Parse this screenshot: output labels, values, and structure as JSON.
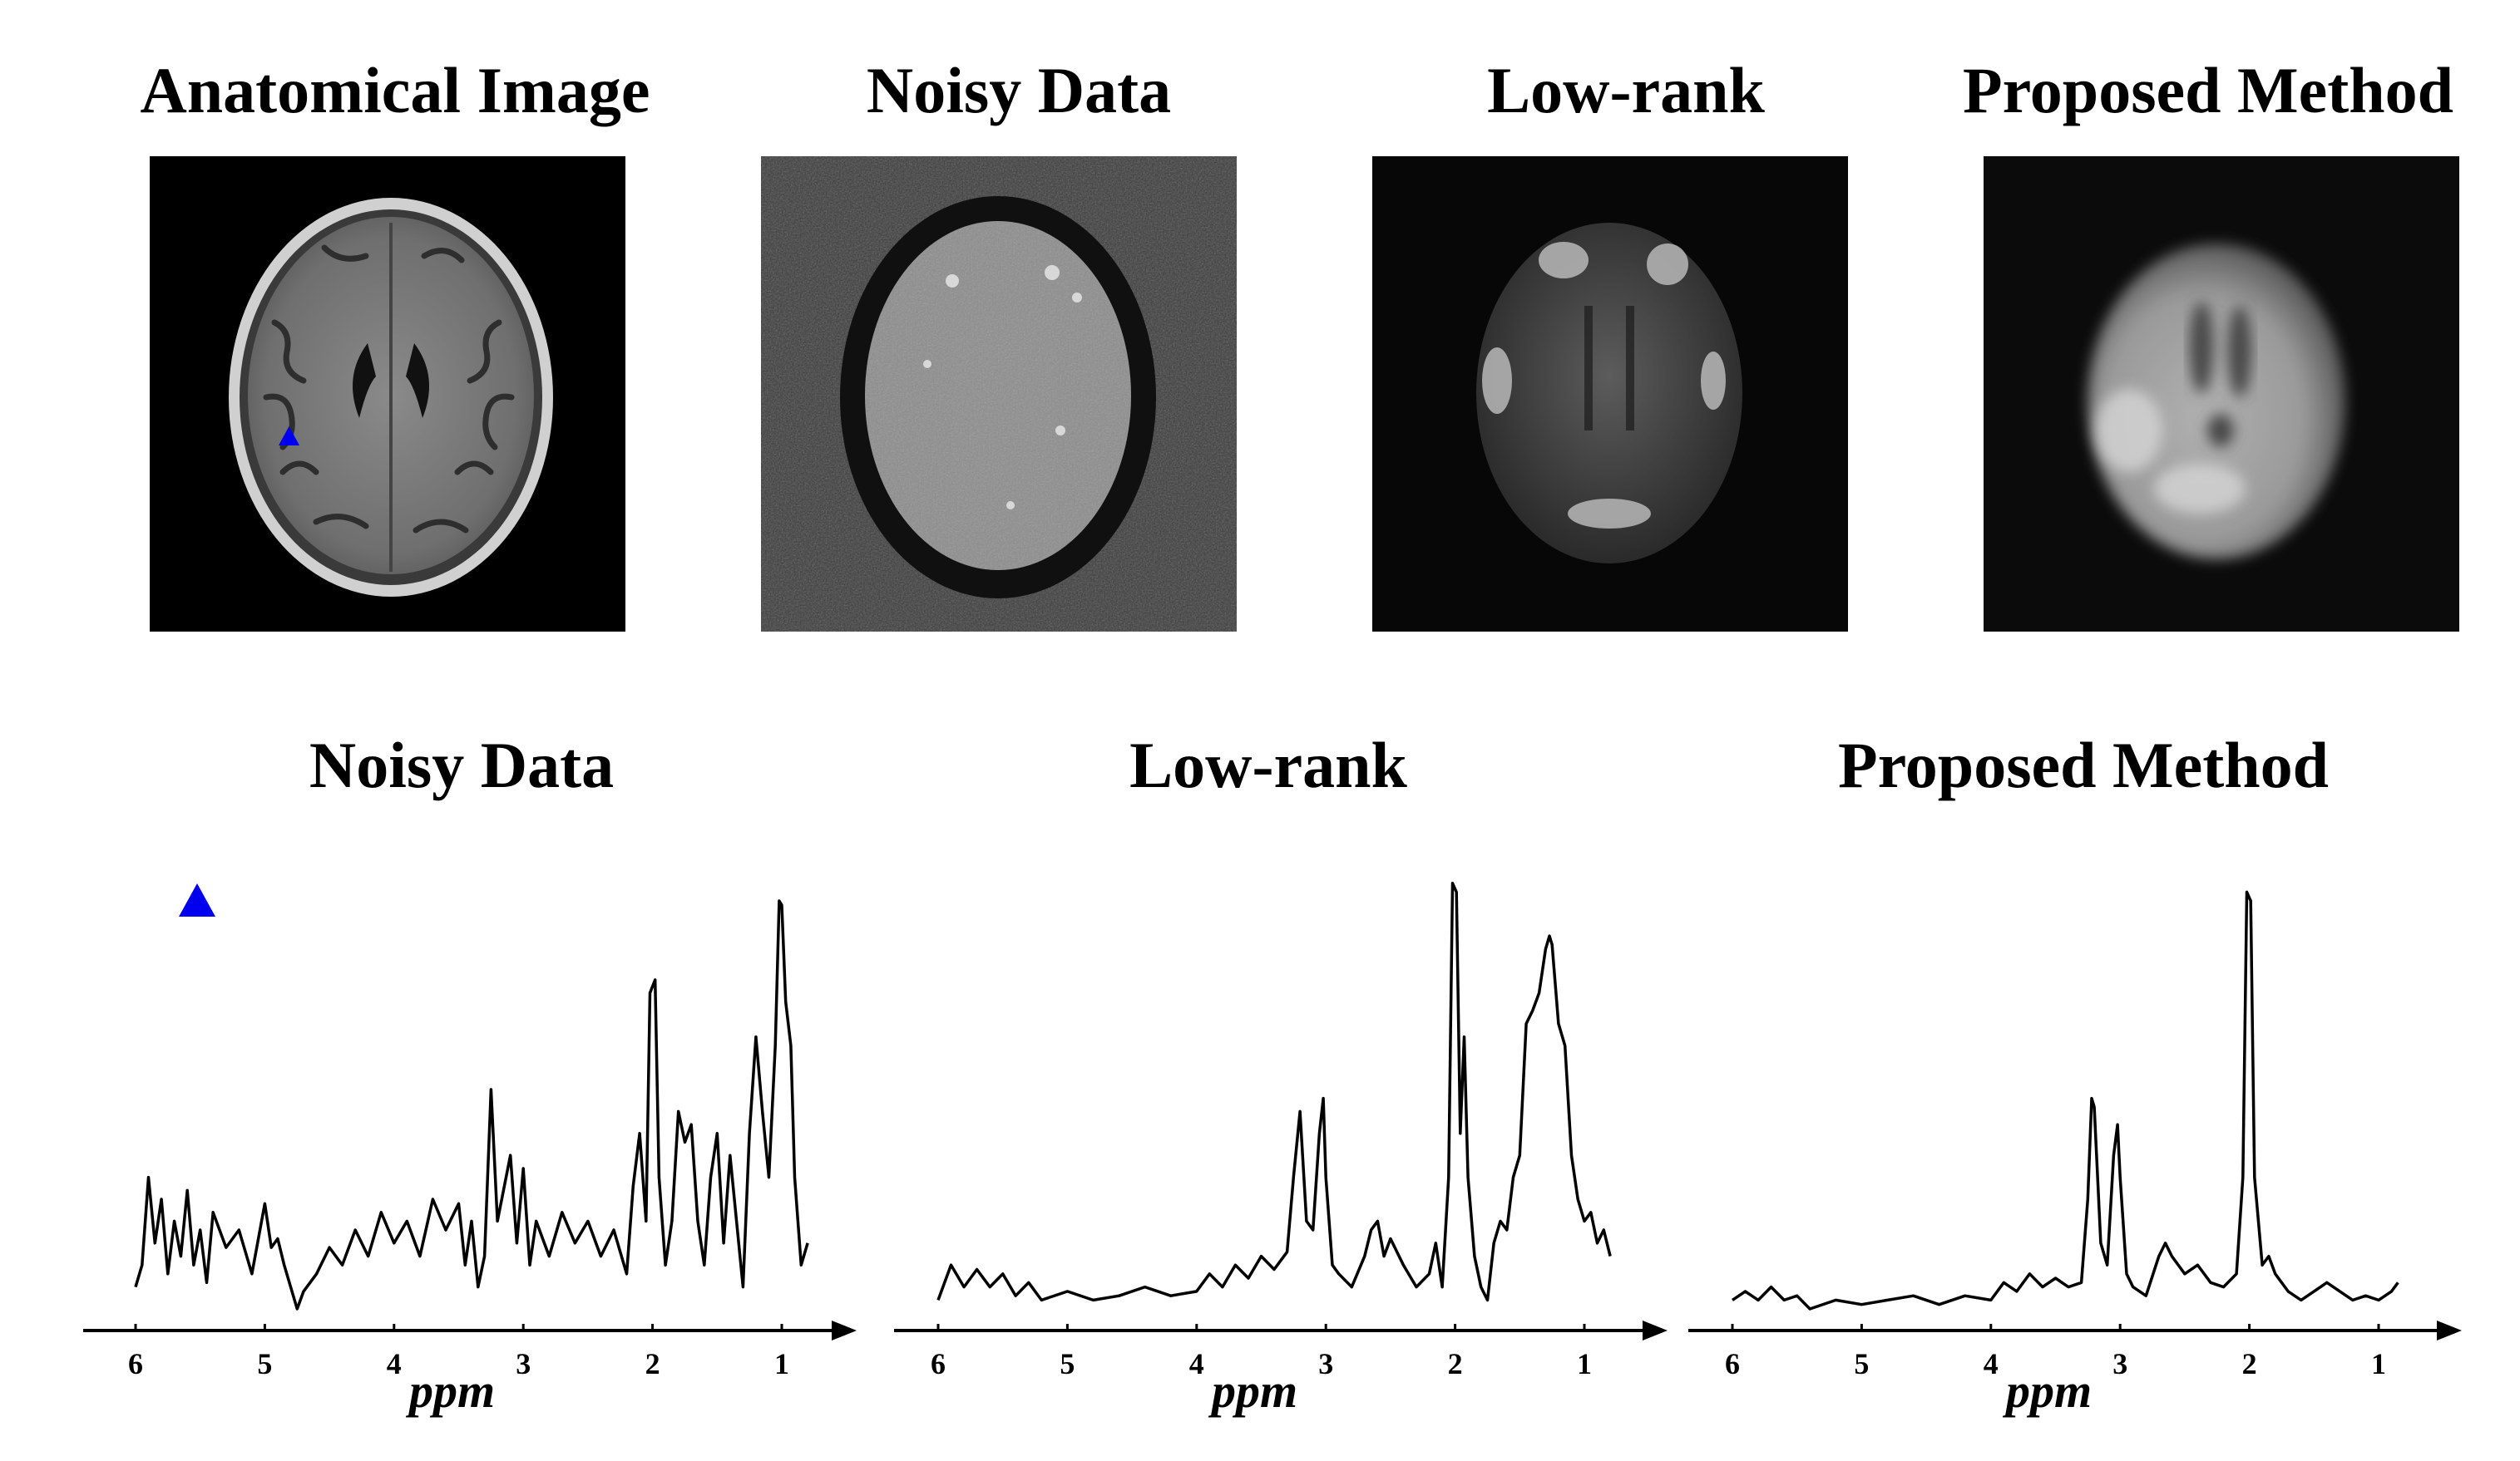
{
  "top_titles": [
    "Anatomical Image",
    "Noisy Data",
    "Low-rank",
    "Proposed Method"
  ],
  "bottom_titles": [
    "Noisy Data",
    "Low-rank",
    "Proposed Method"
  ],
  "marker_color": "#0000ee",
  "chart_data": [
    {
      "type": "line",
      "title": "Noisy Data",
      "xlabel": "ppm",
      "x_ticks": [
        6,
        5,
        4,
        3,
        2,
        1
      ],
      "xlim": [
        6.05,
        0.7
      ],
      "ylim": [
        0,
        1
      ],
      "series": [
        {
          "points": [
            [
              6.0,
              0.05
            ],
            [
              5.95,
              0.1
            ],
            [
              5.9,
              0.3
            ],
            [
              5.85,
              0.15
            ],
            [
              5.8,
              0.25
            ],
            [
              5.75,
              0.08
            ],
            [
              5.7,
              0.2
            ],
            [
              5.65,
              0.12
            ],
            [
              5.6,
              0.27
            ],
            [
              5.55,
              0.1
            ],
            [
              5.5,
              0.18
            ],
            [
              5.45,
              0.06
            ],
            [
              5.4,
              0.22
            ],
            [
              5.3,
              0.14
            ],
            [
              5.2,
              0.18
            ],
            [
              5.1,
              0.08
            ],
            [
              5.0,
              0.24
            ],
            [
              4.95,
              0.14
            ],
            [
              4.9,
              0.16
            ],
            [
              4.85,
              0.1
            ],
            [
              4.8,
              0.05
            ],
            [
              4.75,
              0.0
            ],
            [
              4.7,
              0.04
            ],
            [
              4.6,
              0.08
            ],
            [
              4.5,
              0.14
            ],
            [
              4.4,
              0.1
            ],
            [
              4.3,
              0.18
            ],
            [
              4.2,
              0.12
            ],
            [
              4.1,
              0.22
            ],
            [
              4.0,
              0.15
            ],
            [
              3.9,
              0.2
            ],
            [
              3.8,
              0.12
            ],
            [
              3.7,
              0.25
            ],
            [
              3.6,
              0.18
            ],
            [
              3.5,
              0.24
            ],
            [
              3.45,
              0.1
            ],
            [
              3.4,
              0.2
            ],
            [
              3.35,
              0.05
            ],
            [
              3.3,
              0.12
            ],
            [
              3.25,
              0.5
            ],
            [
              3.2,
              0.2
            ],
            [
              3.1,
              0.35
            ],
            [
              3.05,
              0.15
            ],
            [
              3.0,
              0.32
            ],
            [
              2.95,
              0.1
            ],
            [
              2.9,
              0.2
            ],
            [
              2.8,
              0.12
            ],
            [
              2.7,
              0.22
            ],
            [
              2.6,
              0.15
            ],
            [
              2.5,
              0.2
            ],
            [
              2.4,
              0.12
            ],
            [
              2.3,
              0.18
            ],
            [
              2.2,
              0.08
            ],
            [
              2.15,
              0.28
            ],
            [
              2.1,
              0.4
            ],
            [
              2.05,
              0.2
            ],
            [
              2.02,
              0.72
            ],
            [
              1.98,
              0.75
            ],
            [
              1.95,
              0.3
            ],
            [
              1.9,
              0.1
            ],
            [
              1.85,
              0.2
            ],
            [
              1.8,
              0.45
            ],
            [
              1.75,
              0.38
            ],
            [
              1.7,
              0.42
            ],
            [
              1.65,
              0.2
            ],
            [
              1.6,
              0.1
            ],
            [
              1.55,
              0.3
            ],
            [
              1.5,
              0.4
            ],
            [
              1.45,
              0.15
            ],
            [
              1.4,
              0.35
            ],
            [
              1.35,
              0.2
            ],
            [
              1.3,
              0.05
            ],
            [
              1.25,
              0.4
            ],
            [
              1.2,
              0.62
            ],
            [
              1.15,
              0.45
            ],
            [
              1.1,
              0.3
            ],
            [
              1.05,
              0.6
            ],
            [
              1.02,
              0.93
            ],
            [
              1.0,
              0.92
            ],
            [
              0.97,
              0.7
            ],
            [
              0.93,
              0.6
            ],
            [
              0.9,
              0.3
            ],
            [
              0.85,
              0.1
            ],
            [
              0.8,
              0.15
            ]
          ]
        }
      ]
    },
    {
      "type": "line",
      "title": "Low-rank",
      "xlabel": "ppm",
      "x_ticks": [
        6,
        5,
        4,
        3,
        2,
        1
      ],
      "xlim": [
        6.05,
        0.7
      ],
      "ylim": [
        0,
        1
      ],
      "series": [
        {
          "points": [
            [
              6.0,
              0.02
            ],
            [
              5.9,
              0.1
            ],
            [
              5.8,
              0.05
            ],
            [
              5.7,
              0.09
            ],
            [
              5.6,
              0.05
            ],
            [
              5.5,
              0.08
            ],
            [
              5.4,
              0.03
            ],
            [
              5.3,
              0.06
            ],
            [
              5.2,
              0.02
            ],
            [
              5.0,
              0.04
            ],
            [
              4.8,
              0.02
            ],
            [
              4.6,
              0.03
            ],
            [
              4.4,
              0.05
            ],
            [
              4.2,
              0.03
            ],
            [
              4.0,
              0.04
            ],
            [
              3.9,
              0.08
            ],
            [
              3.8,
              0.05
            ],
            [
              3.7,
              0.1
            ],
            [
              3.6,
              0.07
            ],
            [
              3.5,
              0.12
            ],
            [
              3.4,
              0.09
            ],
            [
              3.3,
              0.13
            ],
            [
              3.25,
              0.3
            ],
            [
              3.2,
              0.45
            ],
            [
              3.15,
              0.2
            ],
            [
              3.1,
              0.18
            ],
            [
              3.05,
              0.4
            ],
            [
              3.02,
              0.48
            ],
            [
              3.0,
              0.3
            ],
            [
              2.95,
              0.1
            ],
            [
              2.9,
              0.08
            ],
            [
              2.8,
              0.05
            ],
            [
              2.7,
              0.12
            ],
            [
              2.65,
              0.18
            ],
            [
              2.6,
              0.2
            ],
            [
              2.55,
              0.12
            ],
            [
              2.5,
              0.16
            ],
            [
              2.4,
              0.1
            ],
            [
              2.3,
              0.05
            ],
            [
              2.2,
              0.08
            ],
            [
              2.15,
              0.15
            ],
            [
              2.1,
              0.05
            ],
            [
              2.05,
              0.3
            ],
            [
              2.02,
              0.97
            ],
            [
              1.99,
              0.95
            ],
            [
              1.96,
              0.4
            ],
            [
              1.93,
              0.62
            ],
            [
              1.9,
              0.3
            ],
            [
              1.85,
              0.12
            ],
            [
              1.8,
              0.05
            ],
            [
              1.75,
              0.02
            ],
            [
              1.7,
              0.15
            ],
            [
              1.65,
              0.2
            ],
            [
              1.6,
              0.18
            ],
            [
              1.55,
              0.3
            ],
            [
              1.5,
              0.35
            ],
            [
              1.45,
              0.65
            ],
            [
              1.4,
              0.68
            ],
            [
              1.35,
              0.72
            ],
            [
              1.3,
              0.82
            ],
            [
              1.27,
              0.85
            ],
            [
              1.25,
              0.83
            ],
            [
              1.2,
              0.65
            ],
            [
              1.15,
              0.6
            ],
            [
              1.1,
              0.35
            ],
            [
              1.05,
              0.25
            ],
            [
              1.0,
              0.2
            ],
            [
              0.95,
              0.22
            ],
            [
              0.9,
              0.15
            ],
            [
              0.85,
              0.18
            ],
            [
              0.8,
              0.12
            ]
          ]
        }
      ]
    },
    {
      "type": "line",
      "title": "Proposed Method",
      "xlabel": "ppm",
      "x_ticks": [
        6,
        5,
        4,
        3,
        2,
        1
      ],
      "xlim": [
        6.05,
        0.7
      ],
      "ylim": [
        0,
        1
      ],
      "series": [
        {
          "points": [
            [
              6.0,
              0.02
            ],
            [
              5.9,
              0.04
            ],
            [
              5.8,
              0.02
            ],
            [
              5.7,
              0.05
            ],
            [
              5.6,
              0.02
            ],
            [
              5.5,
              0.03
            ],
            [
              5.4,
              0.0
            ],
            [
              5.2,
              0.02
            ],
            [
              5.0,
              0.01
            ],
            [
              4.8,
              0.02
            ],
            [
              4.6,
              0.03
            ],
            [
              4.4,
              0.01
            ],
            [
              4.2,
              0.03
            ],
            [
              4.0,
              0.02
            ],
            [
              3.9,
              0.06
            ],
            [
              3.8,
              0.04
            ],
            [
              3.7,
              0.08
            ],
            [
              3.6,
              0.05
            ],
            [
              3.5,
              0.07
            ],
            [
              3.4,
              0.05
            ],
            [
              3.3,
              0.06
            ],
            [
              3.25,
              0.25
            ],
            [
              3.22,
              0.48
            ],
            [
              3.2,
              0.46
            ],
            [
              3.15,
              0.15
            ],
            [
              3.1,
              0.1
            ],
            [
              3.05,
              0.35
            ],
            [
              3.02,
              0.42
            ],
            [
              3.0,
              0.3
            ],
            [
              2.95,
              0.08
            ],
            [
              2.9,
              0.05
            ],
            [
              2.8,
              0.03
            ],
            [
              2.7,
              0.12
            ],
            [
              2.65,
              0.15
            ],
            [
              2.6,
              0.12
            ],
            [
              2.5,
              0.08
            ],
            [
              2.4,
              0.1
            ],
            [
              2.3,
              0.06
            ],
            [
              2.2,
              0.05
            ],
            [
              2.1,
              0.08
            ],
            [
              2.05,
              0.3
            ],
            [
              2.02,
              0.95
            ],
            [
              1.99,
              0.93
            ],
            [
              1.96,
              0.3
            ],
            [
              1.9,
              0.1
            ],
            [
              1.85,
              0.12
            ],
            [
              1.8,
              0.08
            ],
            [
              1.7,
              0.04
            ],
            [
              1.6,
              0.02
            ],
            [
              1.5,
              0.04
            ],
            [
              1.4,
              0.06
            ],
            [
              1.3,
              0.04
            ],
            [
              1.2,
              0.02
            ],
            [
              1.1,
              0.03
            ],
            [
              1.0,
              0.02
            ],
            [
              0.9,
              0.04
            ],
            [
              0.85,
              0.06
            ]
          ]
        }
      ]
    }
  ]
}
